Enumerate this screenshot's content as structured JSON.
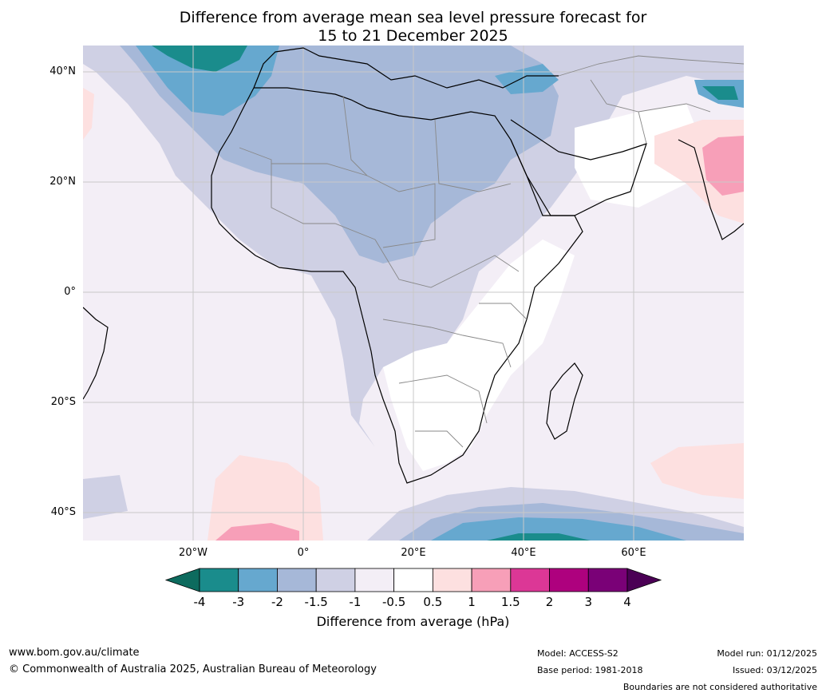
{
  "title": {
    "line1": "Difference from average mean sea level pressure forecast for",
    "line2": "15 to 21 December 2025"
  },
  "axes": {
    "lat_labels": [
      "40°N",
      "20°N",
      "0°",
      "20°S",
      "40°S"
    ],
    "lon_labels": [
      "20°W",
      "0°",
      "20°E",
      "40°E",
      "60°E"
    ]
  },
  "colorbar": {
    "ticks": [
      "-4",
      "-3",
      "-2",
      "-1.5",
      "-1",
      "-0.5",
      "0.5",
      "1",
      "1.5",
      "2",
      "3",
      "4"
    ],
    "colors": [
      "#1a8c8c",
      "#66a8cf",
      "#a6b8d8",
      "#cfd0e4",
      "#f3eef6",
      "#ffffff",
      "#fde0e0",
      "#f79fb8",
      "#dc3796",
      "#ae017e",
      "#7a0177"
    ],
    "under_color": "#0d6b5e",
    "over_color": "#4b0055",
    "label": "Difference from average (hPa)"
  },
  "footer": {
    "url": "www.bom.gov.au/climate",
    "copyright": "© Commonwealth of Australia 2025, Australian Bureau of Meteorology",
    "model": "Model: ACCESS-S2",
    "base_period": "Base period: 1981-2018",
    "model_run": "Model run: 01/12/2025",
    "issued": "Issued: 03/12/2025",
    "disclaimer": "Boundaries are not considered authoritative"
  }
}
